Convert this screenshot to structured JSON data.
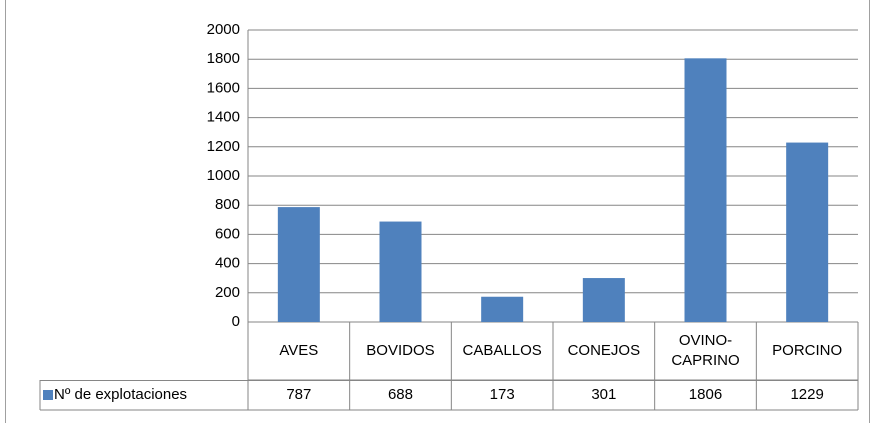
{
  "chart_data": {
    "type": "bar",
    "categories": [
      "AVES",
      "BOVIDOS",
      "CABALLOS",
      "CONEJOS",
      "OVINO-CAPRINO",
      "PORCINO"
    ],
    "series": [
      {
        "name": "Nº de explotaciones",
        "color": "#4f81bd",
        "values": [
          787,
          688,
          173,
          301,
          1806,
          1229
        ]
      }
    ],
    "ylim": [
      0,
      2000
    ],
    "yticks": [
      0,
      200,
      400,
      600,
      800,
      1000,
      1200,
      1400,
      1600,
      1800,
      2000
    ],
    "grid": true
  }
}
